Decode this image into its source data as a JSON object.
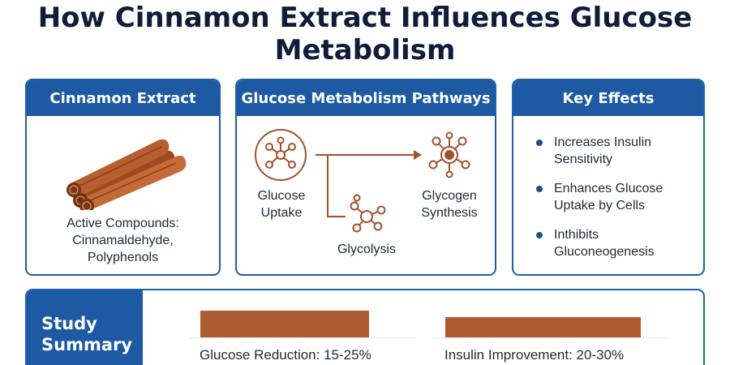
{
  "title": "How Cinnamon Extract Influences Glucose Metabolism",
  "colors": {
    "primary": "#1d5aa3",
    "accent": "#b05c32",
    "text": "#0f1d3a"
  },
  "panels": {
    "extract": {
      "header": "Cinnamon Extract",
      "image_icon": "cinnamon-sticks-icon",
      "compounds_line1": "Active Compounds:",
      "compounds_line2": "Cinnamaldehyde,",
      "compounds_line3": "Polyphenols"
    },
    "pathways": {
      "header": "Glucose Metabolism Pathways",
      "nodes": [
        {
          "line1": "Glucose",
          "line2": "Uptake",
          "icon": "molecule-icon"
        },
        {
          "line1": "Glycolysis",
          "line2": "",
          "icon": "molecule-icon"
        },
        {
          "line1": "Glycogen",
          "line2": "Synthesis",
          "icon": "molecule-icon"
        }
      ]
    },
    "effects": {
      "header": "Key Effects",
      "items": [
        {
          "line1": "Increases Insulin",
          "line2": "Sensitivity"
        },
        {
          "line1": "Enhances Glucose",
          "line2": "Uptake by Cells"
        },
        {
          "line1": "Inthibits",
          "line2": "Gluconeogenesis"
        }
      ]
    }
  },
  "summary": {
    "label_line1": "Study",
    "label_line2": "Summary",
    "bars": [
      {
        "label": "Glucose Reduction: 15-25%",
        "fill": 1.0
      },
      {
        "label": "Insulin Improvement: 20-30%",
        "fill": 1.0
      }
    ]
  }
}
